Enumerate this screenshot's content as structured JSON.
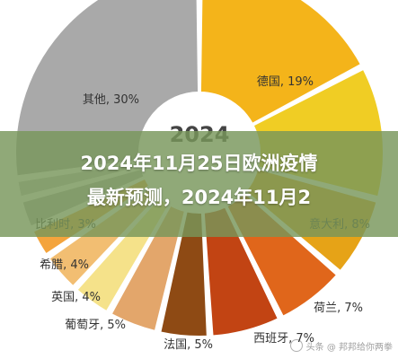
{
  "chart_data": {
    "type": "pie",
    "style": "donut",
    "center_label": "2024",
    "slices": [
      {
        "label": "德国, 19%",
        "name": "德国",
        "value": 19,
        "color": "#F4B41A"
      },
      {
        "label": "",
        "name": "",
        "value": 13,
        "color": "#F0CD24"
      },
      {
        "label": "意大利, 8%",
        "name": "意大利",
        "value": 8,
        "color": "#E6A317"
      },
      {
        "label": "荷兰, 7%",
        "name": "荷兰",
        "value": 7,
        "color": "#E0661B"
      },
      {
        "label": "西班牙, 7%",
        "name": "西班牙",
        "value": 7,
        "color": "#C24413"
      },
      {
        "label": "法国, 5%",
        "name": "法国",
        "value": 5,
        "color": "#8E4A14"
      },
      {
        "label": "葡萄牙, 5%",
        "name": "葡萄牙",
        "value": 5,
        "color": "#E3A66B"
      },
      {
        "label": "英国, 4%",
        "name": "英国",
        "value": 4,
        "color": "#F5E28A"
      },
      {
        "label": "希腊, 4%",
        "name": "希腊",
        "value": 4,
        "color": "#F2BE72"
      },
      {
        "label": "比利时, 3%",
        "name": "比利时",
        "value": 3,
        "color": "#F4A43C"
      },
      {
        "label": "",
        "name": "",
        "value": 3,
        "color": "#B9B9B9"
      },
      {
        "label": "",
        "name": "",
        "value": 2,
        "color": "#C6C6C6"
      },
      {
        "label": "其他, 30%",
        "name": "其他",
        "value": 30,
        "color": "#A9A9A9"
      }
    ]
  },
  "banner": {
    "line1": "2024年11月25日欧洲疫情",
    "line2": "最新预测，2024年11月2"
  },
  "watermark": {
    "text": "头条 @ 邦邦给你两拳"
  }
}
